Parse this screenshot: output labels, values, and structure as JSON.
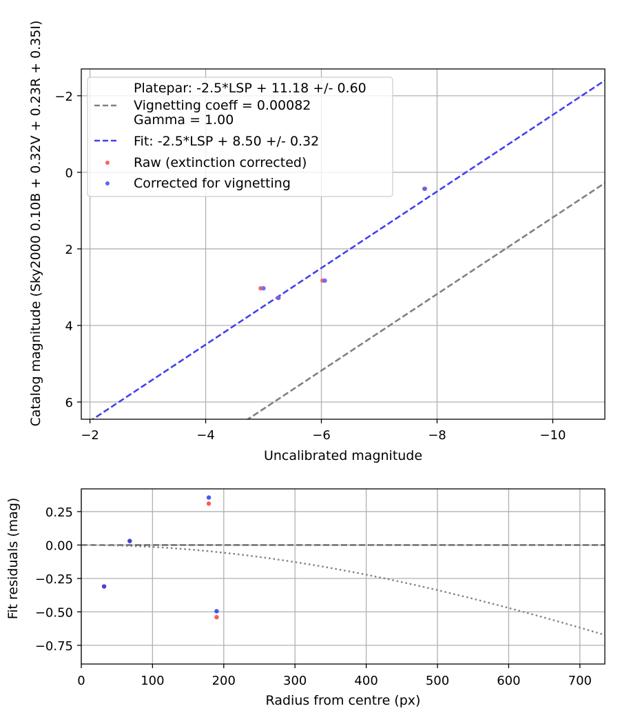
{
  "chart_data": [
    {
      "type": "scatter",
      "xlabel": "Uncalibrated magnitude",
      "ylabel": "Catalog magnitude (Sky2000 0.10B + 0.32V + 0.23R + 0.35I)",
      "xlim": [
        -1.85,
        -10.9
      ],
      "ylim": [
        6.45,
        -2.7
      ],
      "x_ticks": [
        -2,
        -4,
        -6,
        -8,
        -10
      ],
      "x_tick_labels": [
        "−2",
        "−4",
        "−6",
        "−8",
        "−10"
      ],
      "y_ticks": [
        -2,
        0,
        2,
        4,
        6
      ],
      "y_tick_labels": [
        "−2",
        "0",
        "2",
        "4",
        "6"
      ],
      "grid": true,
      "legend_position": "top-left",
      "lines": [
        {
          "id": "platepar",
          "legend_label": "Platepar: -2.5*LSP + 11.18 +/- 0.60",
          "legend_extra": [
            "Vignetting coeff = 0.00082",
            "Gamma = 1.00"
          ],
          "slope": 1.0,
          "intercept": 11.18,
          "color": "#808080",
          "style": "dashed"
        },
        {
          "id": "fit",
          "legend_label": "Fit: -2.5*LSP + 8.50 +/- 0.32",
          "slope": 1.0,
          "intercept": 8.5,
          "color": "#4040f0",
          "style": "dashed"
        }
      ],
      "series": [
        {
          "name": "Raw (extinction corrected)",
          "color": "#ff6060",
          "points": [
            [
              -4.95,
              3.03
            ],
            [
              -5.25,
              3.28
            ],
            [
              -6.02,
              2.83
            ],
            [
              -7.78,
              0.43
            ]
          ]
        },
        {
          "name": "Corrected for vignetting",
          "color": "#6060ff",
          "points": [
            [
              -5.0,
              3.03
            ],
            [
              -5.26,
              3.28
            ],
            [
              -6.06,
              2.83
            ],
            [
              -7.79,
              0.43
            ]
          ]
        }
      ]
    },
    {
      "type": "scatter",
      "xlabel": "Radius from centre (px)",
      "ylabel": "Fit residuals (mag)",
      "xlim": [
        0,
        735
      ],
      "ylim": [
        -0.89,
        0.42
      ],
      "x_ticks": [
        0,
        100,
        200,
        300,
        400,
        500,
        600,
        700
      ],
      "x_tick_labels": [
        "0",
        "100",
        "200",
        "300",
        "400",
        "500",
        "600",
        "700"
      ],
      "y_ticks": [
        0.25,
        0.0,
        -0.25,
        -0.5,
        -0.75
      ],
      "y_tick_labels": [
        "0.25",
        "0.00",
        "−0.25",
        "−0.50",
        "−0.75"
      ],
      "grid": true,
      "zero_line_color": "#555555",
      "vignetting_curve": {
        "coeff": 0.00082,
        "color": "#808080",
        "style": "dotted"
      },
      "series": [
        {
          "name": "Raw (extinction corrected)",
          "color": "#ff5a5a",
          "points": [
            [
              32,
              -0.31
            ],
            [
              68,
              0.03
            ],
            [
              179,
              0.31
            ],
            [
              190,
              -0.54
            ]
          ]
        },
        {
          "name": "Corrected for vignetting",
          "color": "#2040f0",
          "points": [
            [
              32,
              -0.31
            ],
            [
              68,
              0.03
            ],
            [
              179,
              0.355
            ],
            [
              190,
              -0.495
            ]
          ]
        }
      ]
    }
  ]
}
